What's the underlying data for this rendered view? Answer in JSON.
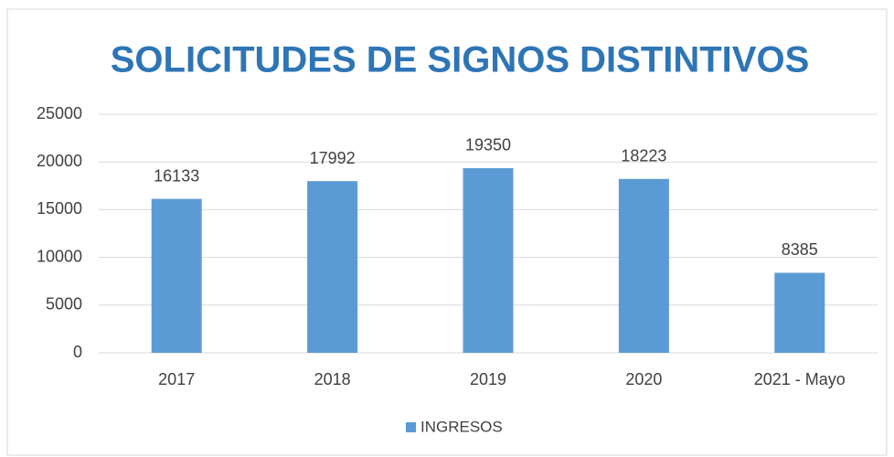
{
  "chart_data": {
    "type": "bar",
    "title": "SOLICITUDES DE SIGNOS DISTINTIVOS",
    "categories": [
      "2017",
      "2018",
      "2019",
      "2020",
      "2021 - Mayo"
    ],
    "series": [
      {
        "name": "INGRESOS",
        "color": "#5b9bd5",
        "values": [
          16133,
          17992,
          19350,
          18223,
          8385
        ]
      }
    ],
    "ylim": [
      0,
      25000
    ],
    "yticks": [
      0,
      5000,
      10000,
      15000,
      20000,
      25000
    ],
    "grid": true,
    "legend": "bottom"
  }
}
